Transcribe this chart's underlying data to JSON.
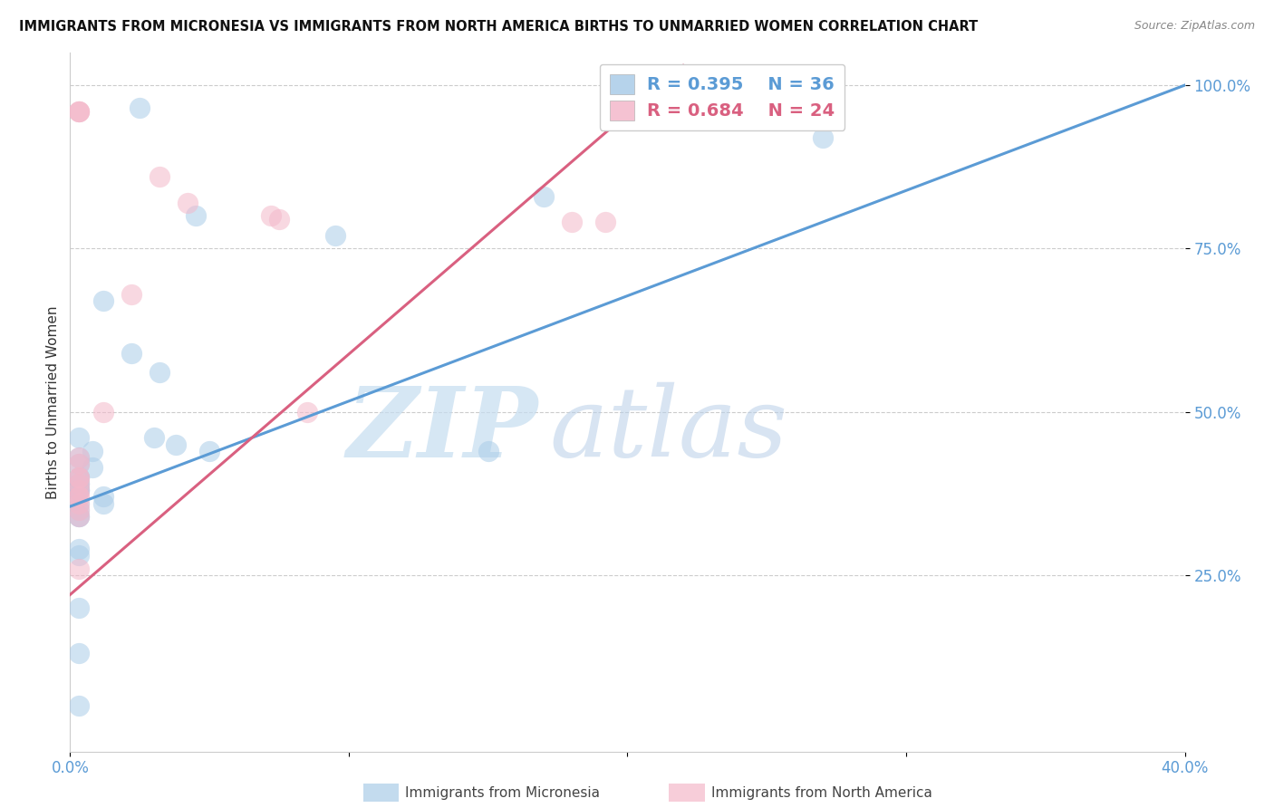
{
  "title": "IMMIGRANTS FROM MICRONESIA VS IMMIGRANTS FROM NORTH AMERICA BIRTHS TO UNMARRIED WOMEN CORRELATION CHART",
  "source": "Source: ZipAtlas.com",
  "ylabel": "Births to Unmarried Women",
  "xmin": 0.0,
  "xmax": 0.4,
  "ymin": 0.0,
  "ymax": 1.05,
  "y_ticks": [
    0.25,
    0.5,
    0.75,
    1.0
  ],
  "y_tick_labels": [
    "25.0%",
    "50.0%",
    "75.0%",
    "100.0%"
  ],
  "x_ticks": [
    0.0,
    0.1,
    0.2,
    0.3,
    0.4
  ],
  "legend_label1": "Immigrants from Micronesia",
  "legend_label2": "Immigrants from North America",
  "blue_color": "#aacce8",
  "pink_color": "#f4b8ca",
  "blue_line_color": "#5b9bd5",
  "pink_line_color": "#d96080",
  "watermark_zip": "ZIP",
  "watermark_atlas": "atlas",
  "blue_x": [
    0.002,
    0.025,
    0.045,
    0.003,
    0.008,
    0.003,
    0.012,
    0.003,
    0.003,
    0.008,
    0.022,
    0.032,
    0.003,
    0.012,
    0.003,
    0.003,
    0.003,
    0.003,
    0.012,
    0.003,
    0.038,
    0.095,
    0.003,
    0.03,
    0.05,
    0.15,
    0.17,
    0.003,
    0.003,
    0.003,
    0.003,
    0.003,
    0.003,
    0.27,
    0.003,
    0.003
  ],
  "blue_y": [
    0.365,
    0.965,
    0.8,
    0.4,
    0.415,
    0.39,
    0.36,
    0.43,
    0.38,
    0.44,
    0.59,
    0.56,
    0.46,
    0.67,
    0.28,
    0.2,
    0.13,
    0.4,
    0.37,
    0.42,
    0.45,
    0.77,
    0.35,
    0.46,
    0.44,
    0.44,
    0.83,
    0.36,
    0.38,
    0.38,
    0.34,
    0.34,
    0.29,
    0.92,
    0.39,
    0.05
  ],
  "pink_x": [
    0.003,
    0.003,
    0.003,
    0.003,
    0.003,
    0.003,
    0.003,
    0.022,
    0.032,
    0.042,
    0.072,
    0.075,
    0.085,
    0.003,
    0.003,
    0.003,
    0.003,
    0.003,
    0.012,
    0.18,
    0.192,
    0.003,
    0.003,
    0.003
  ],
  "pink_y": [
    0.39,
    0.36,
    0.37,
    0.35,
    0.34,
    0.37,
    0.38,
    0.68,
    0.86,
    0.82,
    0.8,
    0.795,
    0.5,
    0.4,
    0.42,
    0.4,
    0.43,
    0.26,
    0.5,
    0.79,
    0.79,
    0.96,
    0.96,
    0.96
  ],
  "blue_line_x0": 0.0,
  "blue_line_y0": 0.355,
  "blue_line_x1": 0.4,
  "blue_line_y1": 1.0,
  "pink_line_x0": 0.0,
  "pink_line_y0": 0.22,
  "pink_line_x1": 0.22,
  "pink_line_y1": 1.03
}
